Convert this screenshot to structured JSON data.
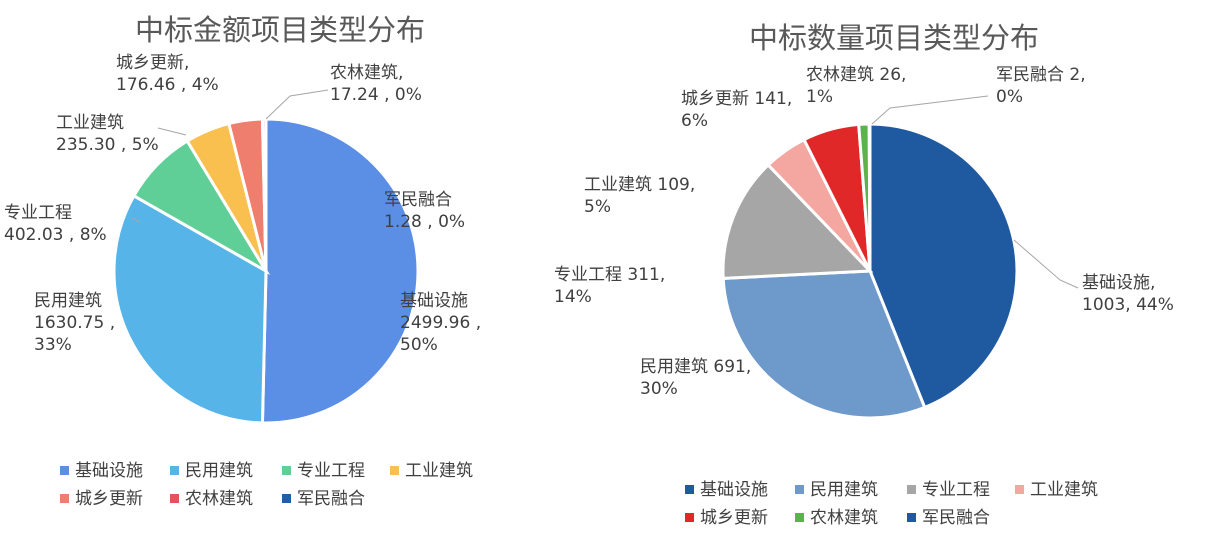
{
  "chart_data": [
    {
      "type": "pie",
      "title": "中标金额项目类型分布",
      "categories": [
        "基础设施",
        "民用建筑",
        "专业工程",
        "工业建筑",
        "城乡更新",
        "农林建筑",
        "军民融合"
      ],
      "values": [
        2499.96,
        1630.75,
        402.03,
        235.3,
        176.46,
        17.24,
        1.28
      ],
      "value_labels": [
        "2499.96",
        "1630.75",
        "402.03",
        "235.30",
        "176.46",
        "17.24",
        "1.28"
      ],
      "percent_labels": [
        "50%",
        "33%",
        "8%",
        "5%",
        "4%",
        "0%",
        "0%"
      ],
      "colors": [
        "#5b8fe6",
        "#56b4e9",
        "#5fcf97",
        "#f9c04f",
        "#f07e6e",
        "#e8505b",
        "#1f5fa8"
      ],
      "legend_position": "bottom",
      "separator": " , "
    },
    {
      "type": "pie",
      "title": "中标数量项目类型分布",
      "categories": [
        "基础设施",
        "民用建筑",
        "专业工程",
        "工业建筑",
        "城乡更新",
        "农林建筑",
        "军民融合"
      ],
      "values": [
        1003,
        691,
        311,
        109,
        141,
        26,
        2
      ],
      "value_labels": [
        "1003",
        "691",
        "311",
        "109",
        "141",
        "26",
        "2"
      ],
      "percent_labels": [
        "44%",
        "30%",
        "14%",
        "5%",
        "6%",
        "1%",
        "0%"
      ],
      "colors": [
        "#1f5aa0",
        "#6e9acb",
        "#a6a6a6",
        "#f4a6a0",
        "#e02828",
        "#5ab34b",
        "#1f5aa0"
      ],
      "legend_position": "bottom",
      "separator": ", "
    }
  ]
}
